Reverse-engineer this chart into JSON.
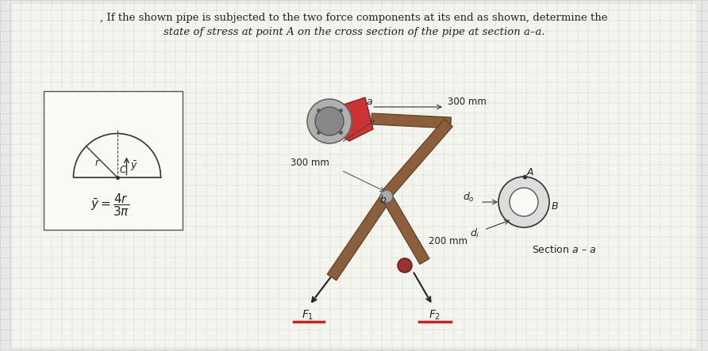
{
  "title_line1": ", If the shown pipe is subjected to the two force components at its end as shown, determine the",
  "title_line2": "state of stress at point Ä on the cross section of the pipe at section à–à.",
  "title_line1_plain": ", If the shown pipe is subjected to the two force components at its end as shown, determine the",
  "title_line2_plain": "state of stress at point A on the cross section of the pipe at section a–a.",
  "bg_color": "#e8e8e8",
  "box_color": "#ffffff",
  "grid_color": "#cccccc",
  "text_color": "#222222"
}
